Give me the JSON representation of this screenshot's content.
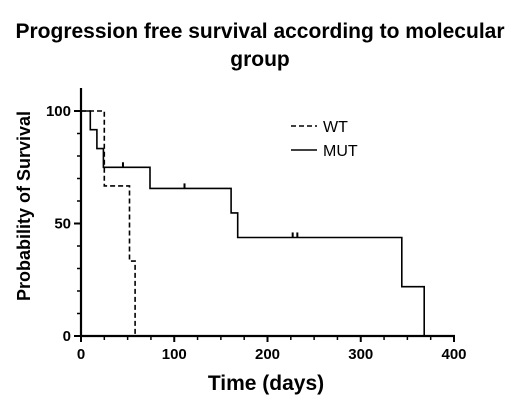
{
  "chart_data": {
    "type": "line",
    "subtype": "kaplan-meier",
    "title": "Progression free survival according to molecular group",
    "xlabel": "Time (days)",
    "ylabel": "Probability of Survival",
    "xlim": [
      0,
      400
    ],
    "ylim": [
      0,
      100
    ],
    "xticks": [
      0,
      100,
      200,
      300,
      400
    ],
    "yticks": [
      0,
      50,
      100
    ],
    "grid": false,
    "legend_position": "top-right",
    "series": [
      {
        "name": "WT",
        "style": "dashed",
        "color": "#000000",
        "steps": [
          [
            0,
            100
          ],
          [
            25,
            100
          ],
          [
            25,
            66.7
          ],
          [
            52,
            66.7
          ],
          [
            52,
            33.3
          ],
          [
            58,
            33.3
          ],
          [
            58,
            0
          ]
        ],
        "censored": []
      },
      {
        "name": "MUT",
        "style": "solid",
        "color": "#000000",
        "steps": [
          [
            0,
            100
          ],
          [
            10,
            100
          ],
          [
            10,
            91.7
          ],
          [
            17,
            91.7
          ],
          [
            17,
            83.3
          ],
          [
            24,
            83.3
          ],
          [
            24,
            75
          ],
          [
            74,
            75
          ],
          [
            74,
            65.6
          ],
          [
            161,
            65.6
          ],
          [
            161,
            54.7
          ],
          [
            168,
            54.7
          ],
          [
            168,
            43.8
          ],
          [
            344,
            43.8
          ],
          [
            344,
            21.9
          ],
          [
            368,
            21.9
          ],
          [
            368,
            0
          ]
        ],
        "censored": [
          [
            45,
            75
          ],
          [
            111,
            65.6
          ],
          [
            227,
            43.8
          ],
          [
            232,
            43.8
          ]
        ]
      }
    ]
  }
}
